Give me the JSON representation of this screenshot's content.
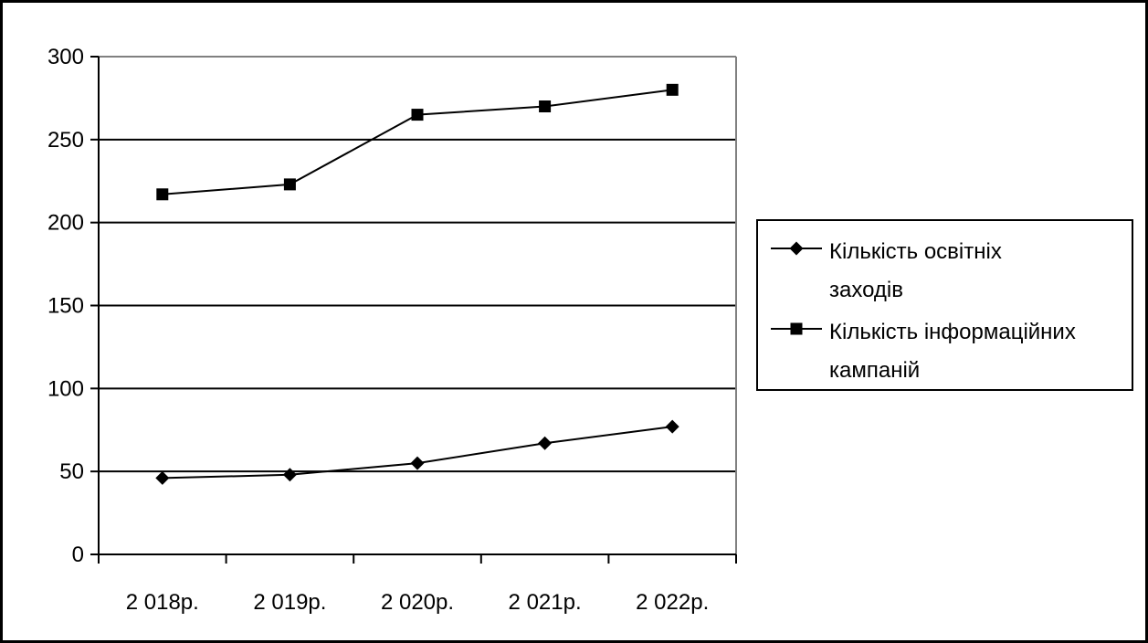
{
  "chart_data": {
    "type": "line",
    "categories": [
      "2 018р.",
      "2 019р.",
      "2 020р.",
      "2 021р.",
      "2 022р."
    ],
    "series": [
      {
        "name": "Кількість освітніх заходів",
        "legend_lines": [
          "Кількість освітніх",
          "заходів"
        ],
        "marker": "diamond",
        "values": [
          46,
          48,
          55,
          67,
          77
        ]
      },
      {
        "name": "Кількість інформаційних кампаній",
        "legend_lines": [
          "Кількість інформаційних",
          "кампаній"
        ],
        "marker": "square",
        "values": [
          217,
          223,
          265,
          270,
          280
        ]
      }
    ],
    "ylim": [
      0,
      300
    ],
    "yticks": [
      0,
      50,
      100,
      150,
      200,
      250,
      300
    ],
    "xlabel": "",
    "ylabel": "",
    "grid": "horizontal",
    "legend_position": "right",
    "colors": {
      "line": "#000000",
      "grid": "#000000",
      "plot_border": "#808080"
    }
  }
}
